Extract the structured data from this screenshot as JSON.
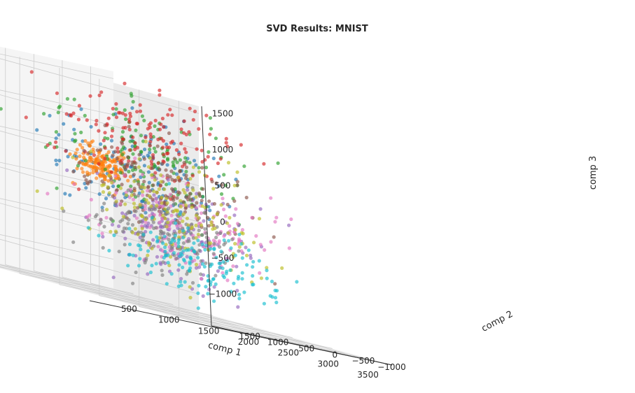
{
  "chart_data": {
    "type": "scatter",
    "projection": "3d",
    "title": "SVD Results: MNIST",
    "xlabel": "comp 1",
    "ylabel": "comp 2",
    "zlabel": "comp 3",
    "xlim": [
      250,
      3750
    ],
    "ylim": [
      -1400,
      2000
    ],
    "zlim": [
      -1400,
      1600
    ],
    "xticks": [
      500,
      1000,
      1500,
      2000,
      2500,
      3000,
      3500
    ],
    "yticks": [
      -1000,
      -500,
      0,
      500,
      1000,
      1500
    ],
    "zticks": [
      -1000,
      -500,
      0,
      500,
      1000,
      1500
    ],
    "xtick_labels": [
      "500",
      "1000",
      "1500",
      "2000",
      "2500",
      "3000",
      "3500"
    ],
    "ytick_labels": [
      "−1000",
      "−500",
      "0",
      "500",
      "1000",
      "1500"
    ],
    "ztick_labels": [
      "−1000",
      "−500",
      "0",
      "500",
      "1000",
      "1500"
    ],
    "grid": true,
    "legend": "none",
    "series": [
      {
        "color": "#1f77b4",
        "center": [
          2400,
          1200,
          400
        ],
        "spread": [
          520,
          380,
          330
        ]
      },
      {
        "color": "#ff7f0e",
        "center": [
          800,
          -400,
          300
        ],
        "spread": [
          130,
          170,
          130
        ]
      },
      {
        "color": "#2ca02c",
        "center": [
          1800,
          300,
          600
        ],
        "spread": [
          500,
          450,
          350
        ]
      },
      {
        "color": "#d62728",
        "center": [
          1900,
          450,
          800
        ],
        "spread": [
          480,
          380,
          330
        ]
      },
      {
        "color": "#9467bd",
        "center": [
          1700,
          -500,
          -350
        ],
        "spread": [
          430,
          360,
          300
        ]
      },
      {
        "color": "#8c564b",
        "center": [
          1900,
          0,
          200
        ],
        "spread": [
          430,
          380,
          300
        ]
      },
      {
        "color": "#e377c2",
        "center": [
          2300,
          250,
          -250
        ],
        "spread": [
          450,
          380,
          300
        ]
      },
      {
        "color": "#7f7f7f",
        "center": [
          1500,
          -600,
          -400
        ],
        "spread": [
          380,
          330,
          250
        ]
      },
      {
        "color": "#bcbd22",
        "center": [
          2050,
          100,
          -50
        ],
        "spread": [
          500,
          430,
          330
        ]
      },
      {
        "color": "#17becf",
        "center": [
          1900,
          -650,
          -700
        ],
        "spread": [
          420,
          330,
          270
        ]
      }
    ]
  }
}
